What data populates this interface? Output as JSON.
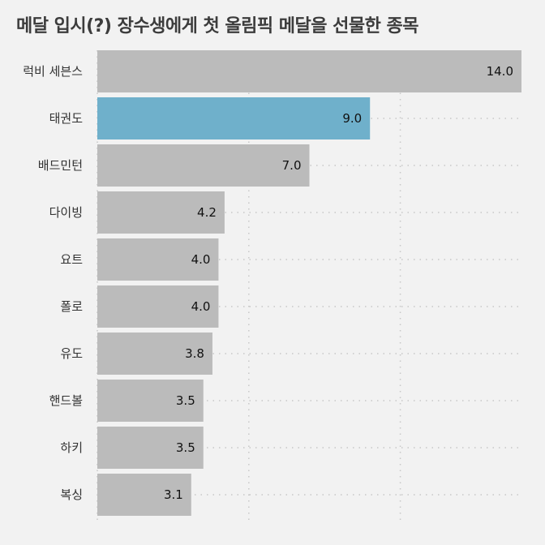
{
  "chart_data": {
    "type": "bar",
    "orientation": "horizontal",
    "title": "메달 입시(?) 장수생에게 첫 올림픽 메달을 선물한 종목",
    "xlabel": "",
    "ylabel": "",
    "xlim": [
      0,
      14
    ],
    "grid": true,
    "categories": [
      "럭비 세븐스",
      "태권도",
      "배드민턴",
      "다이빙",
      "요트",
      "폴로",
      "유도",
      "핸드볼",
      "하키",
      "복싱"
    ],
    "values": [
      14.0,
      9.0,
      7.0,
      4.2,
      4.0,
      4.0,
      3.8,
      3.5,
      3.5,
      3.1
    ],
    "value_labels": [
      "14.0",
      "9.0",
      "7.0",
      "4.2",
      "4.0",
      "4.0",
      "3.8",
      "3.5",
      "3.5",
      "3.1"
    ],
    "highlight_index": 1,
    "colors": {
      "default": "#bbbbbb",
      "highlight": "#6fb0cb",
      "grid": "#c8c8c8"
    }
  }
}
